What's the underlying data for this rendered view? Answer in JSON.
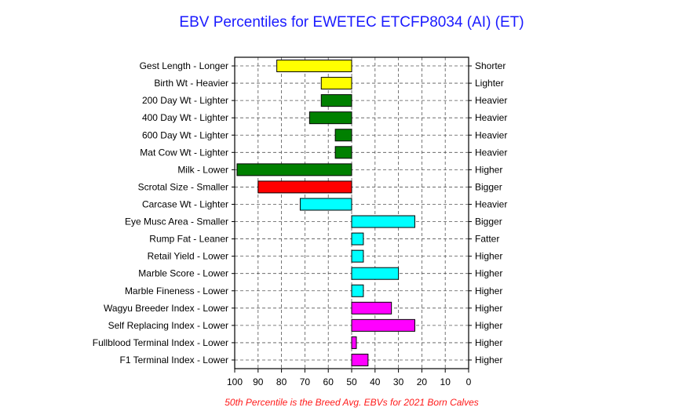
{
  "chart_data": {
    "type": "bar",
    "orientation": "horizontal",
    "title": "EBV Percentiles for EWETEC ETCFP8034 (AI) (ET)",
    "footnote": "50th Percentile is the Breed Avg. EBVs for 2021 Born Calves",
    "xlim": [
      100,
      0
    ],
    "xticks": [
      "100",
      "90",
      "80",
      "70",
      "60",
      "50",
      "40",
      "30",
      "20",
      "10",
      "0"
    ],
    "baseline": 50,
    "grid": true,
    "colors": {
      "yellow": "#ffff00",
      "green": "#008000",
      "red": "#ff0000",
      "cyan": "#00ffff",
      "magenta": "#ff00ff"
    },
    "traits": [
      {
        "left": "Gest Length - Longer",
        "right": "Shorter",
        "value": 82,
        "color": "#ffff00"
      },
      {
        "left": "Birth Wt - Heavier",
        "right": "Lighter",
        "value": 63,
        "color": "#ffff00"
      },
      {
        "left": "200 Day Wt - Lighter",
        "right": "Heavier",
        "value": 63,
        "color": "#008000"
      },
      {
        "left": "400 Day Wt - Lighter",
        "right": "Heavier",
        "value": 68,
        "color": "#008000"
      },
      {
        "left": "600 Day Wt - Lighter",
        "right": "Heavier",
        "value": 57,
        "color": "#008000"
      },
      {
        "left": "Mat Cow Wt - Lighter",
        "right": "Heavier",
        "value": 57,
        "color": "#008000"
      },
      {
        "left": "Milk - Lower",
        "right": "Higher",
        "value": 99,
        "color": "#008000"
      },
      {
        "left": "Scrotal Size - Smaller",
        "right": "Bigger",
        "value": 90,
        "color": "#ff0000"
      },
      {
        "left": "Carcase Wt - Lighter",
        "right": "Heavier",
        "value": 72,
        "color": "#00ffff"
      },
      {
        "left": "Eye Musc Area - Smaller",
        "right": "Bigger",
        "value": 23,
        "color": "#00ffff"
      },
      {
        "left": "Rump Fat - Leaner",
        "right": "Fatter",
        "value": 45,
        "color": "#00ffff"
      },
      {
        "left": "Retail Yield - Lower",
        "right": "Higher",
        "value": 45,
        "color": "#00ffff"
      },
      {
        "left": "Marble Score - Lower",
        "right": "Higher",
        "value": 30,
        "color": "#00ffff"
      },
      {
        "left": "Marble Fineness - Lower",
        "right": "Higher",
        "value": 45,
        "color": "#00ffff"
      },
      {
        "left": "Wagyu Breeder Index - Lower",
        "right": "Higher",
        "value": 33,
        "color": "#ff00ff"
      },
      {
        "left": "Self Replacing Index - Lower",
        "right": "Higher",
        "value": 23,
        "color": "#ff00ff"
      },
      {
        "left": "Fullblood Terminal Index - Lower",
        "right": "Higher",
        "value": 48,
        "color": "#ff00ff"
      },
      {
        "left": "F1 Terminal Index - Lower",
        "right": "Higher",
        "value": 43,
        "color": "#ff00ff"
      }
    ]
  }
}
